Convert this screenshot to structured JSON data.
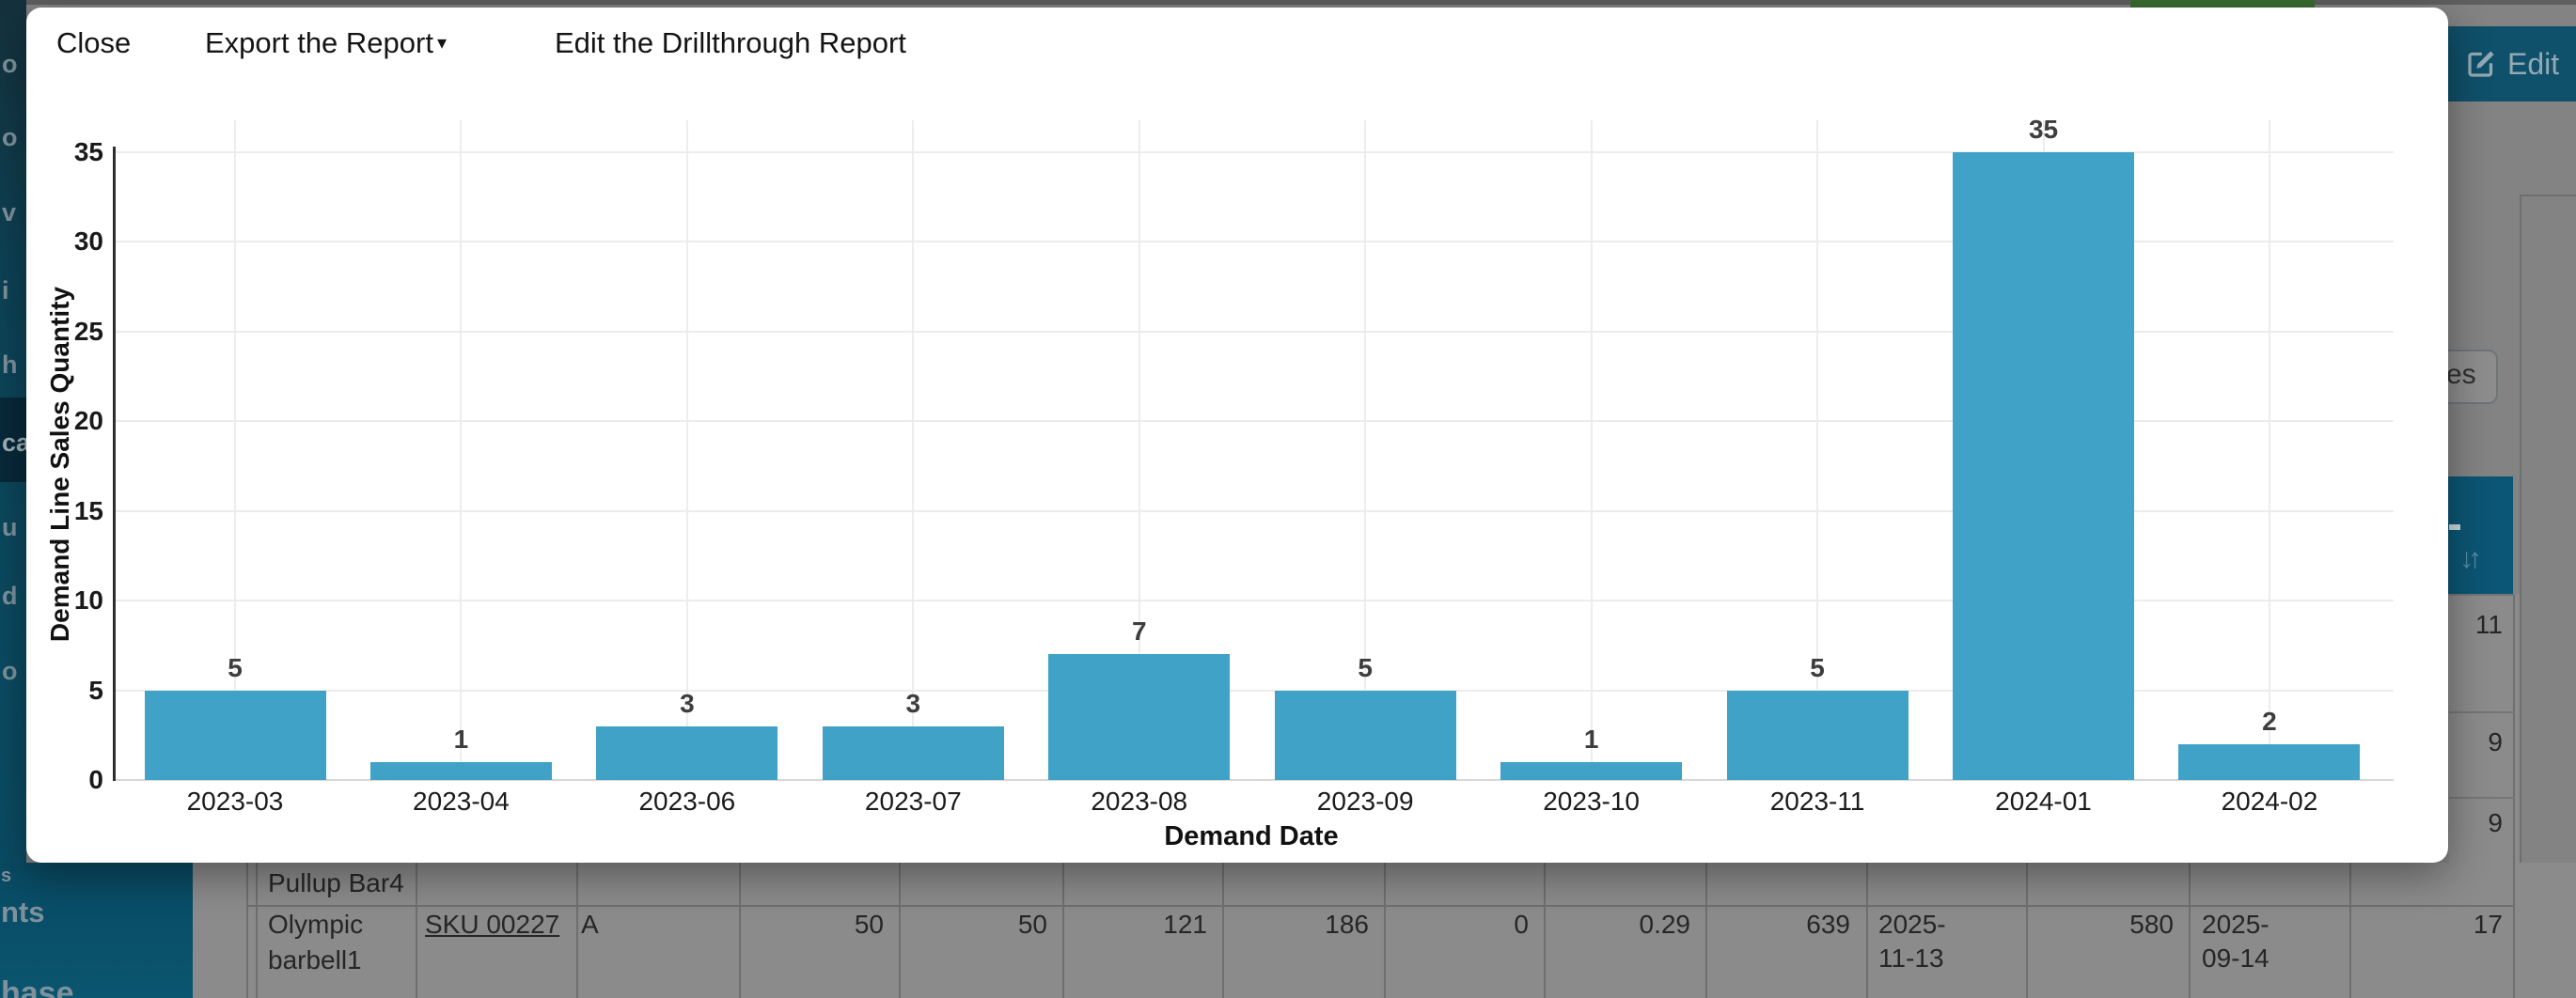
{
  "modal": {
    "menu": {
      "close": "Close",
      "export": "Export the Report",
      "export_caret": "▾",
      "edit_drillthrough": "Edit the Drillthrough Report"
    }
  },
  "chart_data": {
    "type": "bar",
    "x": [
      "2023-03",
      "2023-04",
      "2023-06",
      "2023-07",
      "2023-08",
      "2023-09",
      "2023-10",
      "2023-11",
      "2024-01",
      "2024-02"
    ],
    "values": [
      5,
      1,
      3,
      3,
      7,
      5,
      1,
      5,
      35,
      2
    ],
    "xlabel": "Demand Date",
    "ylabel": "Demand Line Sales Quantity",
    "yticks": [
      0,
      5,
      10,
      15,
      20,
      25,
      30,
      35
    ],
    "ylim": [
      0,
      35
    ],
    "grid": true,
    "legend": false,
    "bar_color": "#3fa2c6",
    "value_labels_shown": true
  },
  "background_page": {
    "edit_button": {
      "label": "Edit"
    },
    "yes_button_fragment": "es",
    "sort_icon": "↓↑",
    "accent_colors": {
      "table_header": "#0b5674",
      "sidebar": "#0a4c64",
      "green_button_top": "#3b6c31"
    },
    "sidebar_fragments": [
      "o",
      "o",
      "v",
      "i",
      "h",
      "ca",
      "u",
      "d",
      "o"
    ],
    "sidebar_bottom_fragments": [
      "s",
      "nts",
      "hase"
    ],
    "table": {
      "right_column_values": [
        "11",
        "9",
        "9"
      ],
      "partial_row_text": "Pullup Bar4",
      "row": {
        "product_line1": "Olympic",
        "product_line2": "barbell1",
        "sku": "SKU 00227",
        "rating": "A",
        "values": [
          "50",
          "50",
          "121",
          "186",
          "0",
          "0.29",
          "639",
          "2025-11-13",
          "580",
          "2025-09-14",
          "17"
        ]
      }
    }
  }
}
